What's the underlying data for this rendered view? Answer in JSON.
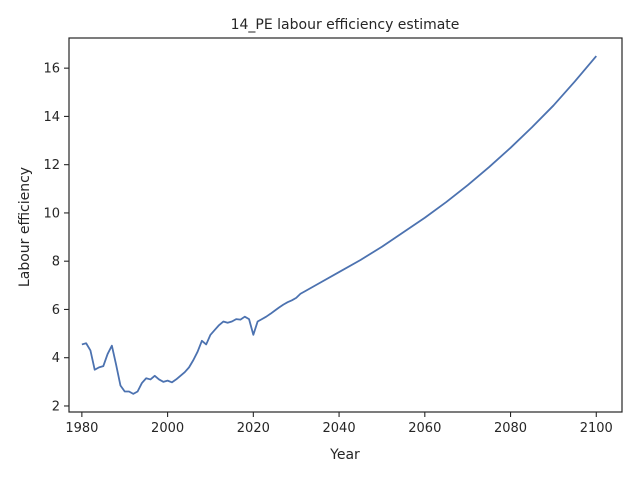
{
  "chart_data": {
    "type": "line",
    "title": "14_PE labour efficiency estimate",
    "xlabel": "Year",
    "ylabel": "Labour efficiency",
    "xlim": [
      1977,
      2106
    ],
    "ylim": [
      1.75,
      17.25
    ],
    "xticks": [
      1980,
      2000,
      2020,
      2040,
      2060,
      2080,
      2100
    ],
    "yticks": [
      2,
      4,
      6,
      8,
      10,
      12,
      14,
      16
    ],
    "grid": false,
    "line_color": "#4c72b0",
    "series": [
      {
        "x": [
          1980,
          1981,
          1982,
          1983,
          1984,
          1985,
          1986,
          1987,
          1988,
          1989,
          1990,
          1991,
          1992,
          1993,
          1994,
          1995,
          1996,
          1997,
          1998,
          1999,
          2000,
          2001,
          2002,
          2003,
          2004,
          2005,
          2006,
          2007,
          2008,
          2009,
          2010,
          2011,
          2012,
          2013,
          2014,
          2015,
          2016,
          2017,
          2018,
          2019,
          2020,
          2021,
          2022,
          2023,
          2024,
          2025,
          2026,
          2027,
          2028,
          2029,
          2030,
          2031,
          2032,
          2035,
          2040,
          2045,
          2050,
          2055,
          2060,
          2065,
          2070,
          2075,
          2080,
          2085,
          2090,
          2095,
          2100
        ],
        "y": [
          4.55,
          4.6,
          4.3,
          3.5,
          3.6,
          3.65,
          4.15,
          4.5,
          3.7,
          2.85,
          2.6,
          2.6,
          2.5,
          2.6,
          2.95,
          3.15,
          3.1,
          3.25,
          3.1,
          3.0,
          3.05,
          2.98,
          3.1,
          3.25,
          3.4,
          3.6,
          3.9,
          4.25,
          4.7,
          4.55,
          4.95,
          5.15,
          5.35,
          5.5,
          5.45,
          5.5,
          5.6,
          5.58,
          5.7,
          5.6,
          4.95,
          5.5,
          5.6,
          5.7,
          5.82,
          5.95,
          6.08,
          6.2,
          6.3,
          6.38,
          6.48,
          6.65,
          6.75,
          7.05,
          7.55,
          8.05,
          8.6,
          9.2,
          9.8,
          10.45,
          11.15,
          11.9,
          12.7,
          13.55,
          14.45,
          15.45,
          16.5
        ]
      }
    ]
  }
}
